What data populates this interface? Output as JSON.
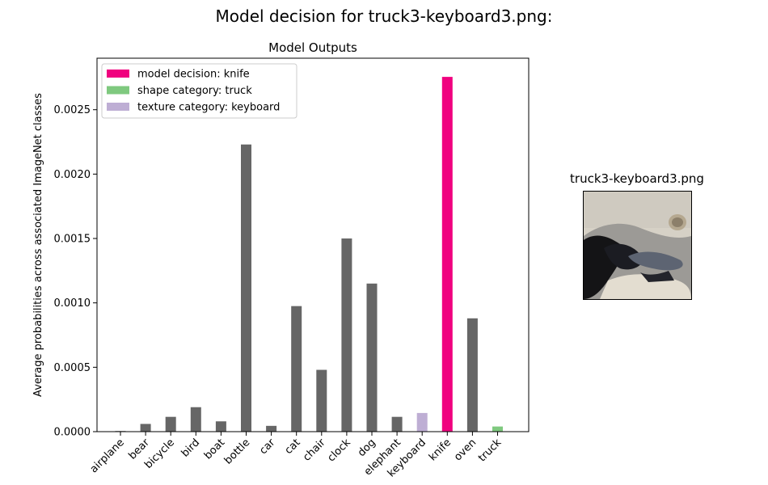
{
  "figure": {
    "suptitle": "Model decision for truck3-keyboard3.png:",
    "image_title": "truck3-keyboard3.png"
  },
  "chart_data": {
    "type": "bar",
    "title": "Model Outputs",
    "xlabel": "",
    "ylabel": "Average probabilities across associated ImageNet classes",
    "ylim": [
      0,
      0.0029
    ],
    "yticks": [
      "0.0000",
      "0.0005",
      "0.0010",
      "0.0015",
      "0.0020",
      "0.0025"
    ],
    "grid": false,
    "legend_position": "top-left",
    "categories": [
      "airplane",
      "bear",
      "bicycle",
      "bird",
      "boat",
      "bottle",
      "car",
      "cat",
      "chair",
      "clock",
      "dog",
      "elephant",
      "keyboard",
      "knife",
      "oven",
      "truck"
    ],
    "values": [
      5e-06,
      6e-05,
      0.000115,
      0.00019,
      8e-05,
      0.00223,
      4.5e-05,
      0.000975,
      0.00048,
      0.0015,
      0.00115,
      0.000115,
      0.000145,
      0.002755,
      0.00088,
      4e-05
    ],
    "bar_colors": [
      "#666666",
      "#666666",
      "#666666",
      "#666666",
      "#666666",
      "#666666",
      "#666666",
      "#666666",
      "#666666",
      "#666666",
      "#666666",
      "#666666",
      "#beaed4",
      "#f0027f",
      "#666666",
      "#7fc97f"
    ],
    "legend": [
      {
        "label": "model decision: knife",
        "color": "#f0027f"
      },
      {
        "label": "shape category: truck",
        "color": "#7fc97f"
      },
      {
        "label": "texture category: keyboard",
        "color": "#beaed4"
      }
    ]
  }
}
